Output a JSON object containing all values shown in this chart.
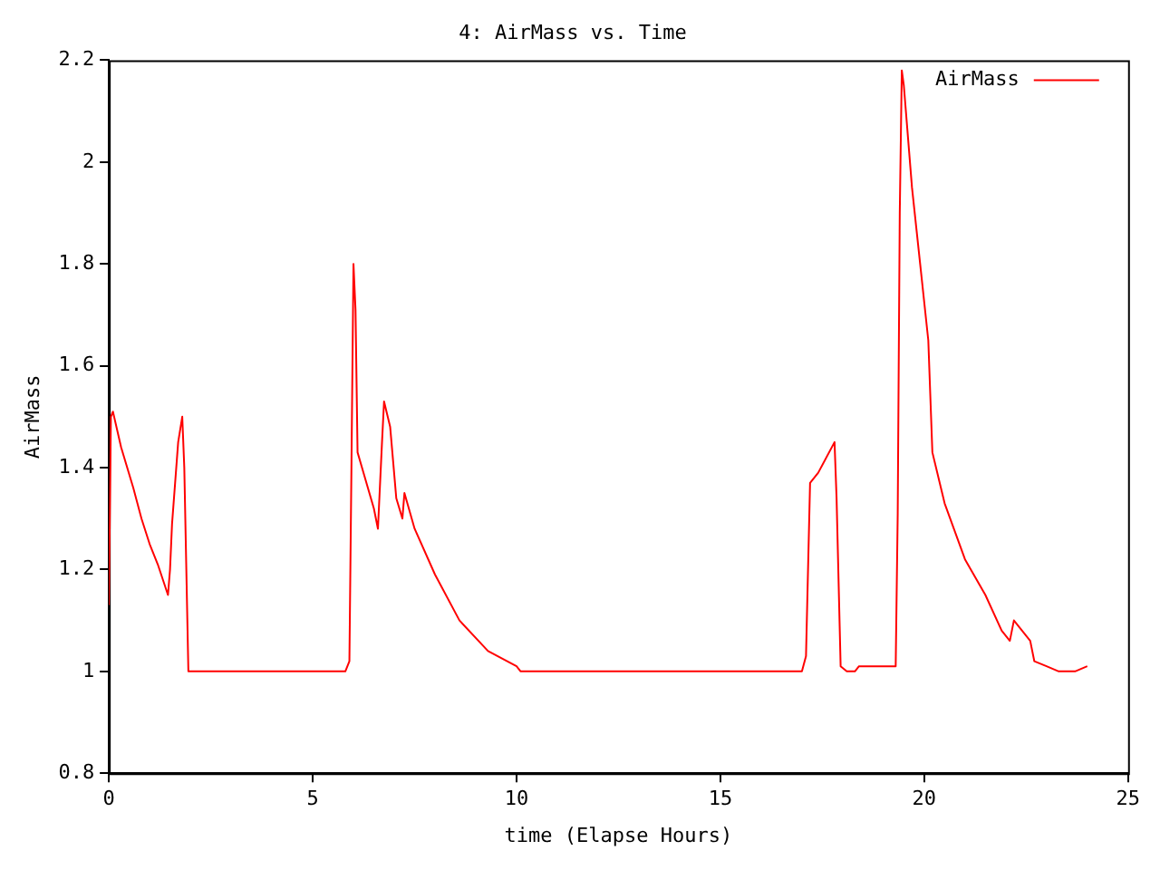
{
  "chart_data": {
    "type": "line",
    "title": "4: AirMass vs. Time",
    "xlabel": "time (Elapse Hours)",
    "ylabel": "AirMass",
    "xlim": [
      0,
      25
    ],
    "xticks": [
      0,
      5,
      10,
      15,
      20,
      25
    ],
    "ylim": [
      0.8,
      2.2
    ],
    "yticks": [
      0.8,
      1,
      1.2,
      1.4,
      1.6,
      1.8,
      2,
      2.2
    ],
    "grid": false,
    "legend": "top right",
    "marker": "none",
    "line_style": "solid",
    "series": [
      {
        "name": "AirMass",
        "color": "#ff0000",
        "x": [
          0,
          0.05,
          0.1,
          0.3,
          0.6,
          0.8,
          1.0,
          1.2,
          1.45,
          1.5,
          1.55,
          1.7,
          1.8,
          1.85,
          1.9,
          1.95,
          5.8,
          5.9,
          5.95,
          6.0,
          6.05,
          6.1,
          6.5,
          6.6,
          6.7,
          6.75,
          6.9,
          7.05,
          7.2,
          7.25,
          7.5,
          8.0,
          8.6,
          9.3,
          10.0,
          10.1,
          17.0,
          17.1,
          17.2,
          17.4,
          17.8,
          17.85,
          17.95,
          18.1,
          18.3,
          18.4,
          19.1,
          19.3,
          19.35,
          19.4,
          19.45,
          19.5,
          19.7,
          19.9,
          20.1,
          20.2,
          20.5,
          21.0,
          21.5,
          21.9,
          22.1,
          22.2,
          22.4,
          22.6,
          22.7,
          23.0,
          23.3,
          23.7,
          24.0
        ],
        "values": [
          1.13,
          1.5,
          1.51,
          1.44,
          1.36,
          1.3,
          1.25,
          1.21,
          1.15,
          1.2,
          1.29,
          1.45,
          1.5,
          1.4,
          1.2,
          1.0,
          1.0,
          1.02,
          1.4,
          1.8,
          1.71,
          1.43,
          1.32,
          1.28,
          1.45,
          1.53,
          1.48,
          1.34,
          1.3,
          1.35,
          1.28,
          1.19,
          1.1,
          1.04,
          1.01,
          1.0,
          1.0,
          1.03,
          1.37,
          1.39,
          1.45,
          1.34,
          1.01,
          1.0,
          1.0,
          1.01,
          1.01,
          1.01,
          1.31,
          1.9,
          2.18,
          2.15,
          1.95,
          1.8,
          1.65,
          1.43,
          1.33,
          1.22,
          1.15,
          1.08,
          1.06,
          1.1,
          1.08,
          1.06,
          1.02,
          1.01,
          1.0,
          1.0,
          1.01
        ]
      }
    ]
  }
}
